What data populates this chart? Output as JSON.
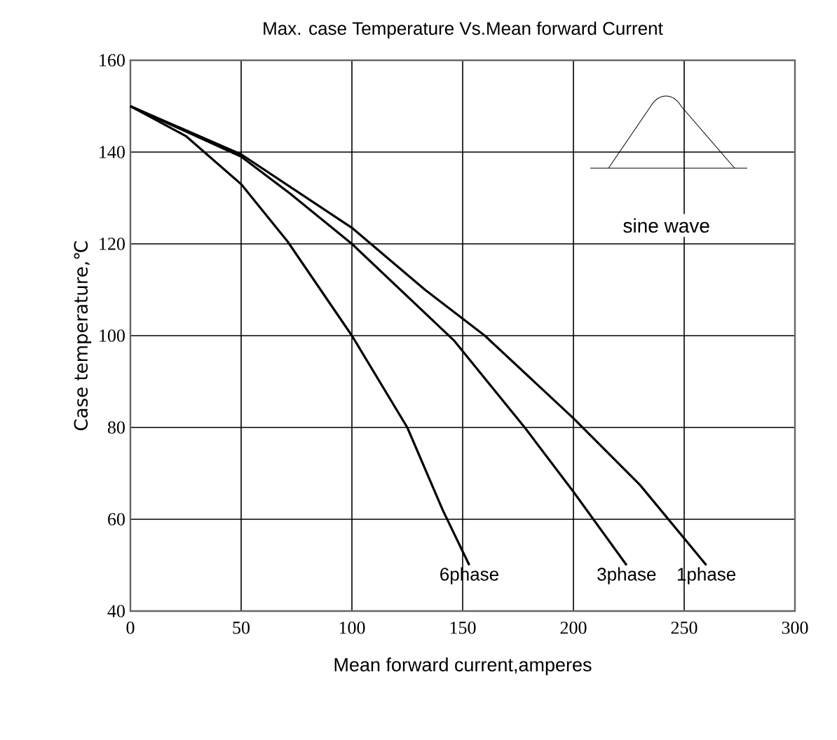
{
  "chart_data": {
    "type": "line",
    "title": "Max. case Temperature Vs.Mean forward Current",
    "xlabel": "Mean forward current,amperes",
    "ylabel": "Case temperature,℃",
    "xlim": [
      0,
      300
    ],
    "xticks": [
      0,
      50,
      100,
      150,
      200,
      250,
      300
    ],
    "ylim": [
      40,
      160
    ],
    "yticks": [
      40,
      60,
      80,
      100,
      120,
      140,
      160
    ],
    "grid": true,
    "marker": "none",
    "line_style": "solid",
    "annotations": [
      "sine wave"
    ],
    "series": [
      {
        "name": "6phase",
        "color": "#000000",
        "x": [
          0,
          25,
          50,
          71,
          100,
          125,
          141,
          153
        ],
        "values": [
          150,
          143.5,
          133,
          120.5,
          100,
          80,
          62,
          50
        ]
      },
      {
        "name": "3phase",
        "color": "#000000",
        "x": [
          0,
          50,
          72,
          100,
          146,
          178,
          200,
          224
        ],
        "values": [
          150,
          139,
          131,
          120,
          99,
          80,
          66,
          50
        ]
      },
      {
        "name": "1phase",
        "color": "#000000",
        "x": [
          0,
          50,
          100,
          133,
          160,
          200,
          230,
          260
        ],
        "values": [
          150,
          139.5,
          123.5,
          110,
          100,
          82,
          67.5,
          50
        ]
      }
    ]
  }
}
